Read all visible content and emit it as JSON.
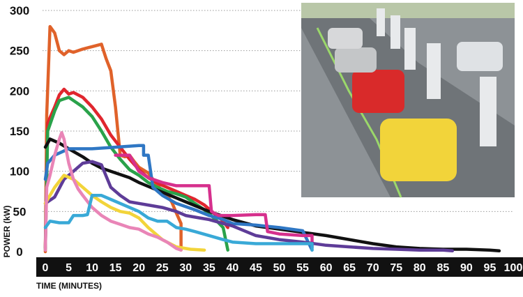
{
  "chart_data": {
    "type": "line",
    "title": "",
    "xlabel": "TIME (MINUTES)",
    "ylabel": "POWER (kW)",
    "xlim": [
      0,
      100
    ],
    "ylim": [
      0,
      300
    ],
    "xticks": [
      0,
      5,
      10,
      15,
      20,
      25,
      30,
      35,
      40,
      45,
      50,
      55,
      60,
      65,
      70,
      75,
      80,
      85,
      90,
      95,
      100
    ],
    "yticks": [
      0,
      50,
      100,
      150,
      200,
      250,
      300
    ],
    "grid": "horizontal dotted",
    "legend": "none",
    "colors": {
      "orange": "#e0622a",
      "red": "#e0262e",
      "green": "#2aa24a",
      "black": "#111111",
      "blue": "#2f77c4",
      "magenta": "#d6308d",
      "purple": "#5e3c98",
      "yellow": "#f2d43a",
      "pink": "#e985b7",
      "cyan": "#39a9d7",
      "axis_bar": "#111111",
      "photo_placeholder": "#8d9296"
    },
    "series": [
      {
        "color": "orange",
        "points": [
          [
            0,
            0
          ],
          [
            0.3,
            170
          ],
          [
            1,
            280
          ],
          [
            2,
            272
          ],
          [
            3,
            250
          ],
          [
            4,
            245
          ],
          [
            5,
            250
          ],
          [
            6,
            248
          ],
          [
            8,
            252
          ],
          [
            10,
            255
          ],
          [
            12,
            258
          ],
          [
            13,
            240
          ],
          [
            14,
            225
          ],
          [
            15,
            180
          ],
          [
            16,
            120
          ],
          [
            17,
            118
          ],
          [
            18,
            120
          ],
          [
            19,
            112
          ],
          [
            20,
            105
          ],
          [
            22,
            98
          ],
          [
            24,
            82
          ],
          [
            26,
            70
          ],
          [
            27,
            62
          ],
          [
            28,
            48
          ],
          [
            29,
            35
          ],
          [
            29,
            2
          ]
        ]
      },
      {
        "color": "red",
        "points": [
          [
            0,
            5
          ],
          [
            0.5,
            160
          ],
          [
            2,
            180
          ],
          [
            3,
            195
          ],
          [
            4,
            202
          ],
          [
            5,
            196
          ],
          [
            6,
            198
          ],
          [
            8,
            192
          ],
          [
            10,
            180
          ],
          [
            12,
            165
          ],
          [
            14,
            145
          ],
          [
            16,
            130
          ],
          [
            18,
            115
          ],
          [
            20,
            102
          ],
          [
            22,
            92
          ],
          [
            24,
            85
          ],
          [
            26,
            80
          ],
          [
            28,
            75
          ],
          [
            30,
            70
          ],
          [
            32,
            65
          ],
          [
            34,
            58
          ],
          [
            36,
            48
          ],
          [
            38,
            38
          ],
          [
            39,
            30
          ]
        ]
      },
      {
        "color": "green",
        "points": [
          [
            0,
            3
          ],
          [
            0.5,
            150
          ],
          [
            2,
            175
          ],
          [
            3,
            188
          ],
          [
            4,
            190
          ],
          [
            5,
            192
          ],
          [
            6,
            188
          ],
          [
            8,
            180
          ],
          [
            10,
            168
          ],
          [
            12,
            150
          ],
          [
            14,
            130
          ],
          [
            16,
            115
          ],
          [
            18,
            102
          ],
          [
            20,
            95
          ],
          [
            22,
            86
          ],
          [
            24,
            80
          ],
          [
            26,
            75
          ],
          [
            28,
            72
          ],
          [
            30,
            68
          ],
          [
            32,
            60
          ],
          [
            34,
            52
          ],
          [
            36,
            42
          ],
          [
            38,
            30
          ],
          [
            39,
            2
          ]
        ]
      },
      {
        "color": "black",
        "points": [
          [
            0,
            130
          ],
          [
            1,
            140
          ],
          [
            3,
            135
          ],
          [
            5,
            128
          ],
          [
            8,
            118
          ],
          [
            10,
            110
          ],
          [
            12,
            104
          ],
          [
            15,
            98
          ],
          [
            18,
            92
          ],
          [
            20,
            86
          ],
          [
            25,
            74
          ],
          [
            30,
            62
          ],
          [
            35,
            50
          ],
          [
            40,
            40
          ],
          [
            45,
            32
          ],
          [
            50,
            28
          ],
          [
            55,
            24
          ],
          [
            60,
            20
          ],
          [
            65,
            15
          ],
          [
            70,
            10
          ],
          [
            75,
            6
          ],
          [
            80,
            4
          ],
          [
            85,
            3
          ],
          [
            90,
            3
          ],
          [
            95,
            2
          ],
          [
            97,
            1
          ]
        ]
      },
      {
        "color": "blue",
        "points": [
          [
            0,
            90
          ],
          [
            0.5,
            110
          ],
          [
            2,
            120
          ],
          [
            5,
            128
          ],
          [
            10,
            128
          ],
          [
            15,
            130
          ],
          [
            20,
            132
          ],
          [
            21,
            132
          ],
          [
            21,
            120
          ],
          [
            22,
            120
          ],
          [
            23,
            80
          ],
          [
            25,
            70
          ],
          [
            28,
            60
          ],
          [
            32,
            52
          ],
          [
            35,
            45
          ],
          [
            38,
            40
          ],
          [
            40,
            35
          ],
          [
            45,
            33
          ],
          [
            50,
            30
          ],
          [
            55,
            26
          ],
          [
            57,
            2
          ]
        ]
      },
      {
        "color": "magenta",
        "points": [
          [
            15,
            120
          ],
          [
            18,
            120
          ],
          [
            20,
            100
          ],
          [
            22,
            92
          ],
          [
            25,
            86
          ],
          [
            28,
            82
          ],
          [
            30,
            82
          ],
          [
            32,
            82
          ],
          [
            35,
            82
          ],
          [
            35.5,
            50
          ],
          [
            37,
            45
          ],
          [
            40,
            45
          ],
          [
            45,
            46
          ],
          [
            47,
            46
          ],
          [
            47.5,
            25
          ],
          [
            50,
            22
          ],
          [
            55,
            20
          ],
          [
            57,
            20
          ],
          [
            57,
            5
          ]
        ]
      },
      {
        "color": "purple",
        "points": [
          [
            0,
            60
          ],
          [
            2,
            68
          ],
          [
            4,
            90
          ],
          [
            6,
            100
          ],
          [
            8,
            110
          ],
          [
            10,
            112
          ],
          [
            12,
            108
          ],
          [
            14,
            80
          ],
          [
            16,
            70
          ],
          [
            18,
            62
          ],
          [
            20,
            60
          ],
          [
            22,
            58
          ],
          [
            25,
            55
          ],
          [
            28,
            50
          ],
          [
            30,
            45
          ],
          [
            33,
            42
          ],
          [
            35,
            40
          ],
          [
            38,
            35
          ],
          [
            40,
            32
          ],
          [
            45,
            20
          ],
          [
            50,
            15
          ],
          [
            55,
            12
          ],
          [
            60,
            8
          ],
          [
            65,
            6
          ],
          [
            70,
            4
          ],
          [
            75,
            3
          ],
          [
            80,
            2
          ],
          [
            85,
            2
          ],
          [
            87,
            1
          ]
        ]
      },
      {
        "color": "yellow",
        "points": [
          [
            0,
            60
          ],
          [
            2,
            80
          ],
          [
            4,
            95
          ],
          [
            6,
            90
          ],
          [
            8,
            80
          ],
          [
            10,
            70
          ],
          [
            12,
            62
          ],
          [
            14,
            55
          ],
          [
            16,
            50
          ],
          [
            18,
            48
          ],
          [
            20,
            42
          ],
          [
            22,
            30
          ],
          [
            25,
            15
          ],
          [
            28,
            6
          ],
          [
            31,
            3
          ],
          [
            34,
            2
          ]
        ]
      },
      {
        "color": "pink",
        "points": [
          [
            0,
            2
          ],
          [
            0.3,
            80
          ],
          [
            1,
            95
          ],
          [
            2,
            120
          ],
          [
            3,
            140
          ],
          [
            3.5,
            148
          ],
          [
            4,
            140
          ],
          [
            5,
            110
          ],
          [
            6,
            90
          ],
          [
            7,
            78
          ],
          [
            8,
            70
          ],
          [
            10,
            55
          ],
          [
            12,
            45
          ],
          [
            14,
            38
          ],
          [
            16,
            34
          ],
          [
            18,
            30
          ],
          [
            20,
            28
          ],
          [
            22,
            22
          ],
          [
            24,
            18
          ],
          [
            26,
            12
          ],
          [
            28,
            4
          ],
          [
            29,
            2
          ]
        ]
      },
      {
        "color": "cyan",
        "points": [
          [
            0,
            30
          ],
          [
            1,
            38
          ],
          [
            3,
            36
          ],
          [
            5,
            36
          ],
          [
            6,
            45
          ],
          [
            8,
            45
          ],
          [
            9,
            46
          ],
          [
            10,
            70
          ],
          [
            12,
            70
          ],
          [
            14,
            65
          ],
          [
            16,
            60
          ],
          [
            18,
            55
          ],
          [
            20,
            50
          ],
          [
            22,
            42
          ],
          [
            24,
            38
          ],
          [
            26,
            38
          ],
          [
            28,
            30
          ],
          [
            30,
            28
          ],
          [
            32,
            25
          ],
          [
            35,
            20
          ],
          [
            38,
            15
          ],
          [
            40,
            12
          ],
          [
            45,
            10
          ],
          [
            50,
            10
          ],
          [
            55,
            10
          ],
          [
            57,
            10
          ],
          [
            57,
            2
          ]
        ]
      }
    ]
  }
}
